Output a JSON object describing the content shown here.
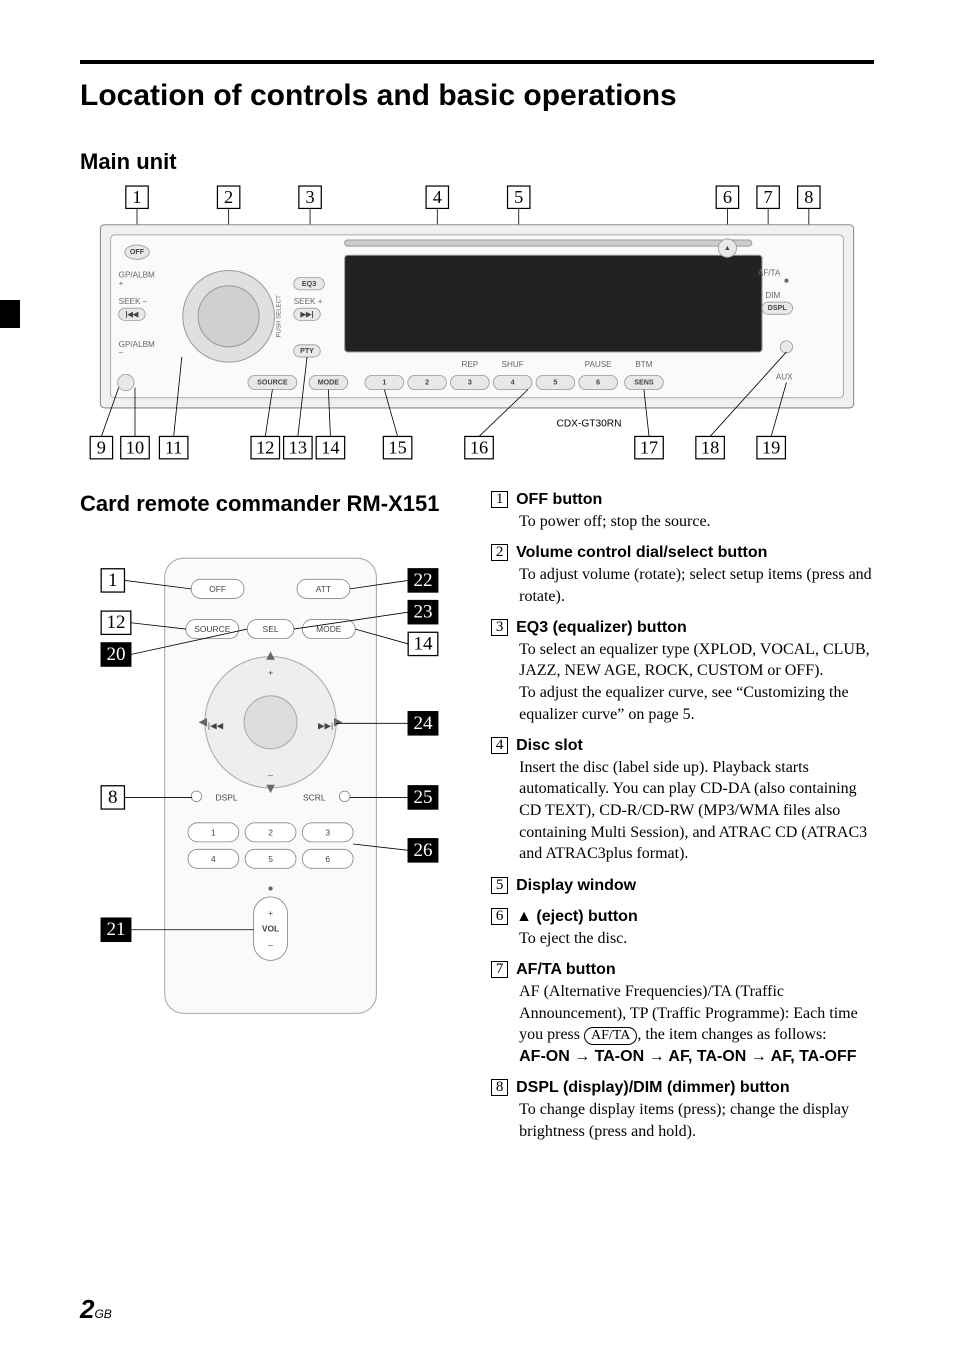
{
  "page": {
    "title": "Location of controls and basic operations",
    "section_main_unit": "Main unit",
    "section_remote": "Card remote commander RM-X151",
    "model_label": "CDX-GT30RN",
    "page_number": "2",
    "page_region": "GB"
  },
  "main_unit_diagram": {
    "callouts_top": [
      "1",
      "2",
      "3",
      "4",
      "5",
      "6",
      "7",
      "8"
    ],
    "callouts_bottom": [
      "9",
      "10",
      "11",
      "12",
      "13",
      "14",
      "15",
      "16",
      "17",
      "18",
      "19"
    ],
    "labels": {
      "off": "OFF",
      "gpalbm_plus": "GP/ALBM",
      "gpalbm_minus": "GP/ALBM",
      "seek_minus": "SEEK –",
      "seek_plus": "SEEK +",
      "eq3": "EQ3",
      "pty": "PTY",
      "source": "SOURCE",
      "mode": "MODE",
      "rep": "REP",
      "shuf": "SHUF",
      "pause": "PAUSE",
      "btm": "BTM",
      "sens": "SENS",
      "aux": "AUX",
      "afta": "AF/TA",
      "dim": "DIM",
      "dspl": "DSPL",
      "push_select": "PUSH SELECT",
      "nums": [
        "1",
        "2",
        "3",
        "4",
        "5",
        "6"
      ]
    }
  },
  "remote_diagram": {
    "callouts_left": [
      "1",
      "12",
      "20",
      "8",
      "21"
    ],
    "callouts_right": [
      "22",
      "23",
      "14",
      "24",
      "25",
      "26"
    ],
    "labels": {
      "off": "OFF",
      "att": "ATT",
      "source": "SOURCE",
      "sel": "SEL",
      "mode": "MODE",
      "dspl": "DSPL",
      "scrl": "SCRL",
      "vol": "VOL",
      "nums": [
        "1",
        "2",
        "3",
        "4",
        "5",
        "6"
      ]
    }
  },
  "controls": [
    {
      "num": "1",
      "title": "OFF button",
      "body_html": "To power off; stop the source."
    },
    {
      "num": "2",
      "title": "Volume control dial/select button",
      "body_html": "To adjust volume (rotate); select setup items (press and rotate)."
    },
    {
      "num": "3",
      "title": "EQ3 (equalizer) button",
      "body_html": "To select an equalizer type (XPLOD, VOCAL, CLUB, JAZZ, NEW AGE, ROCK, CUSTOM or OFF).<br>To adjust the equalizer curve, see “Customizing the equalizer curve” on page 5."
    },
    {
      "num": "4",
      "title": "Disc slot",
      "body_html": "Insert the disc (label side up). Playback starts automatically. You can play CD-DA (also containing CD TEXT), CD-R/CD-RW (MP3/WMA files also containing Multi Session), and ATRAC CD (ATRAC3 and ATRAC3plus format)."
    },
    {
      "num": "5",
      "title": "Display window",
      "body_html": ""
    },
    {
      "num": "6",
      "title": "▲ (eject) button",
      "body_html": "To eject the disc."
    },
    {
      "num": "7",
      "title": "AF/TA button",
      "body_html": "AF (Alternative Frequencies)/TA (Traffic Announcement), TP (Traffic Programme): Each time you press <span class=\"oval-btn\">AF/TA</span>, the item changes as follows:<br><span class=\"bold-seq\">AF-ON → TA-ON → AF, TA-ON → AF, TA-OFF</span>"
    },
    {
      "num": "8",
      "title": "DSPL (display)/DIM (dimmer) button",
      "body_html": "To change display items (press); change the display brightness (press and hold)."
    }
  ]
}
